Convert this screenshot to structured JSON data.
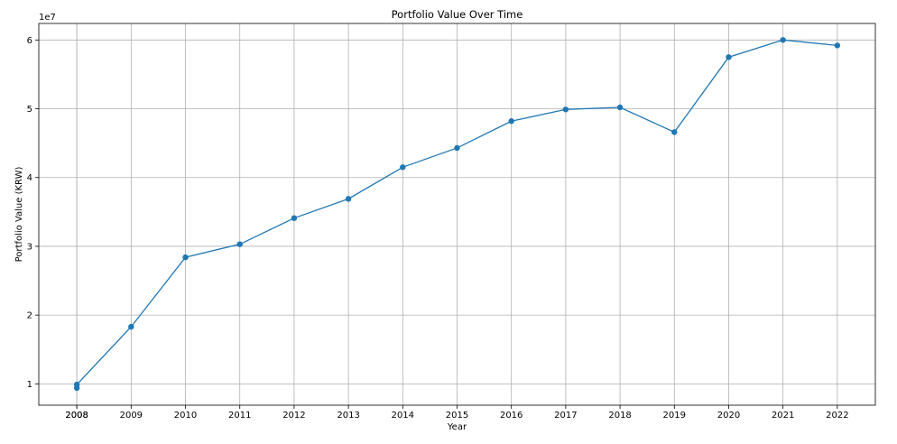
{
  "chart_data": {
    "type": "line",
    "title": "Portfolio Value Over Time",
    "xlabel": "Year",
    "ylabel": "Portfolio Value (KRW)",
    "offset_label": "1e7",
    "x_ticks": [
      "2008",
      "2008",
      "2009",
      "2010",
      "2011",
      "2012",
      "2013",
      "2014",
      "2015",
      "2016",
      "2017",
      "2018",
      "2019",
      "2020",
      "2021",
      "2022"
    ],
    "y_ticks": [
      "1",
      "2",
      "3",
      "4",
      "5",
      "6"
    ],
    "x": [
      2008.0,
      2008.0,
      2009,
      2010,
      2011,
      2012,
      2013,
      2014,
      2015,
      2016,
      2017,
      2018,
      2019,
      2020,
      2021,
      2022
    ],
    "values": [
      9400000,
      9900000,
      18300000,
      28400000,
      30300000,
      34100000,
      36900000,
      41500000,
      44300000,
      48200000,
      49900000,
      50200000,
      46600000,
      57500000,
      60000000,
      59200000
    ],
    "xlim": [
      2007.3,
      2022.7
    ],
    "ylim": [
      6900000,
      62400000
    ],
    "grid": true,
    "color": "#1f77b4"
  }
}
